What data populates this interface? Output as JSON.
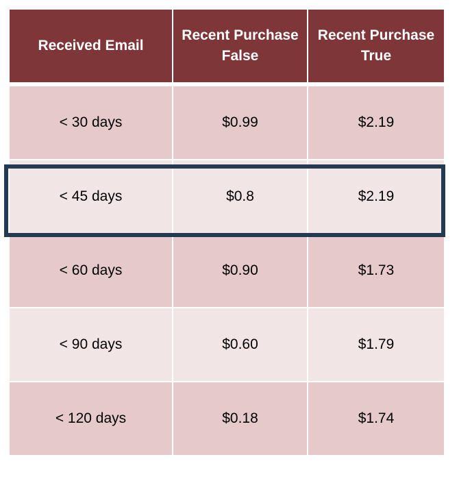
{
  "table": {
    "headers": [
      "Received Email",
      "Recent Purchase False",
      "Recent Purchase True"
    ],
    "rows": [
      {
        "received_email": "< 30 days",
        "recent_purchase_false": "$0.99",
        "recent_purchase_true": "$2.19"
      },
      {
        "received_email": "< 45 days",
        "recent_purchase_false": "$0.8",
        "recent_purchase_true": "$2.19"
      },
      {
        "received_email": "< 60 days",
        "recent_purchase_false": "$0.90",
        "recent_purchase_true": "$1.73"
      },
      {
        "received_email": "< 90 days",
        "recent_purchase_false": "$0.60",
        "recent_purchase_true": "$1.79"
      },
      {
        "received_email": "< 120 days",
        "recent_purchase_false": "$0.18",
        "recent_purchase_true": "$1.74"
      }
    ]
  },
  "highlight": {
    "row": "< 45 days",
    "color": "#233a53"
  },
  "colors": {
    "header_bg": "#7f3638",
    "row_dark": "#e6c9cb",
    "row_light": "#f2e5e6"
  }
}
